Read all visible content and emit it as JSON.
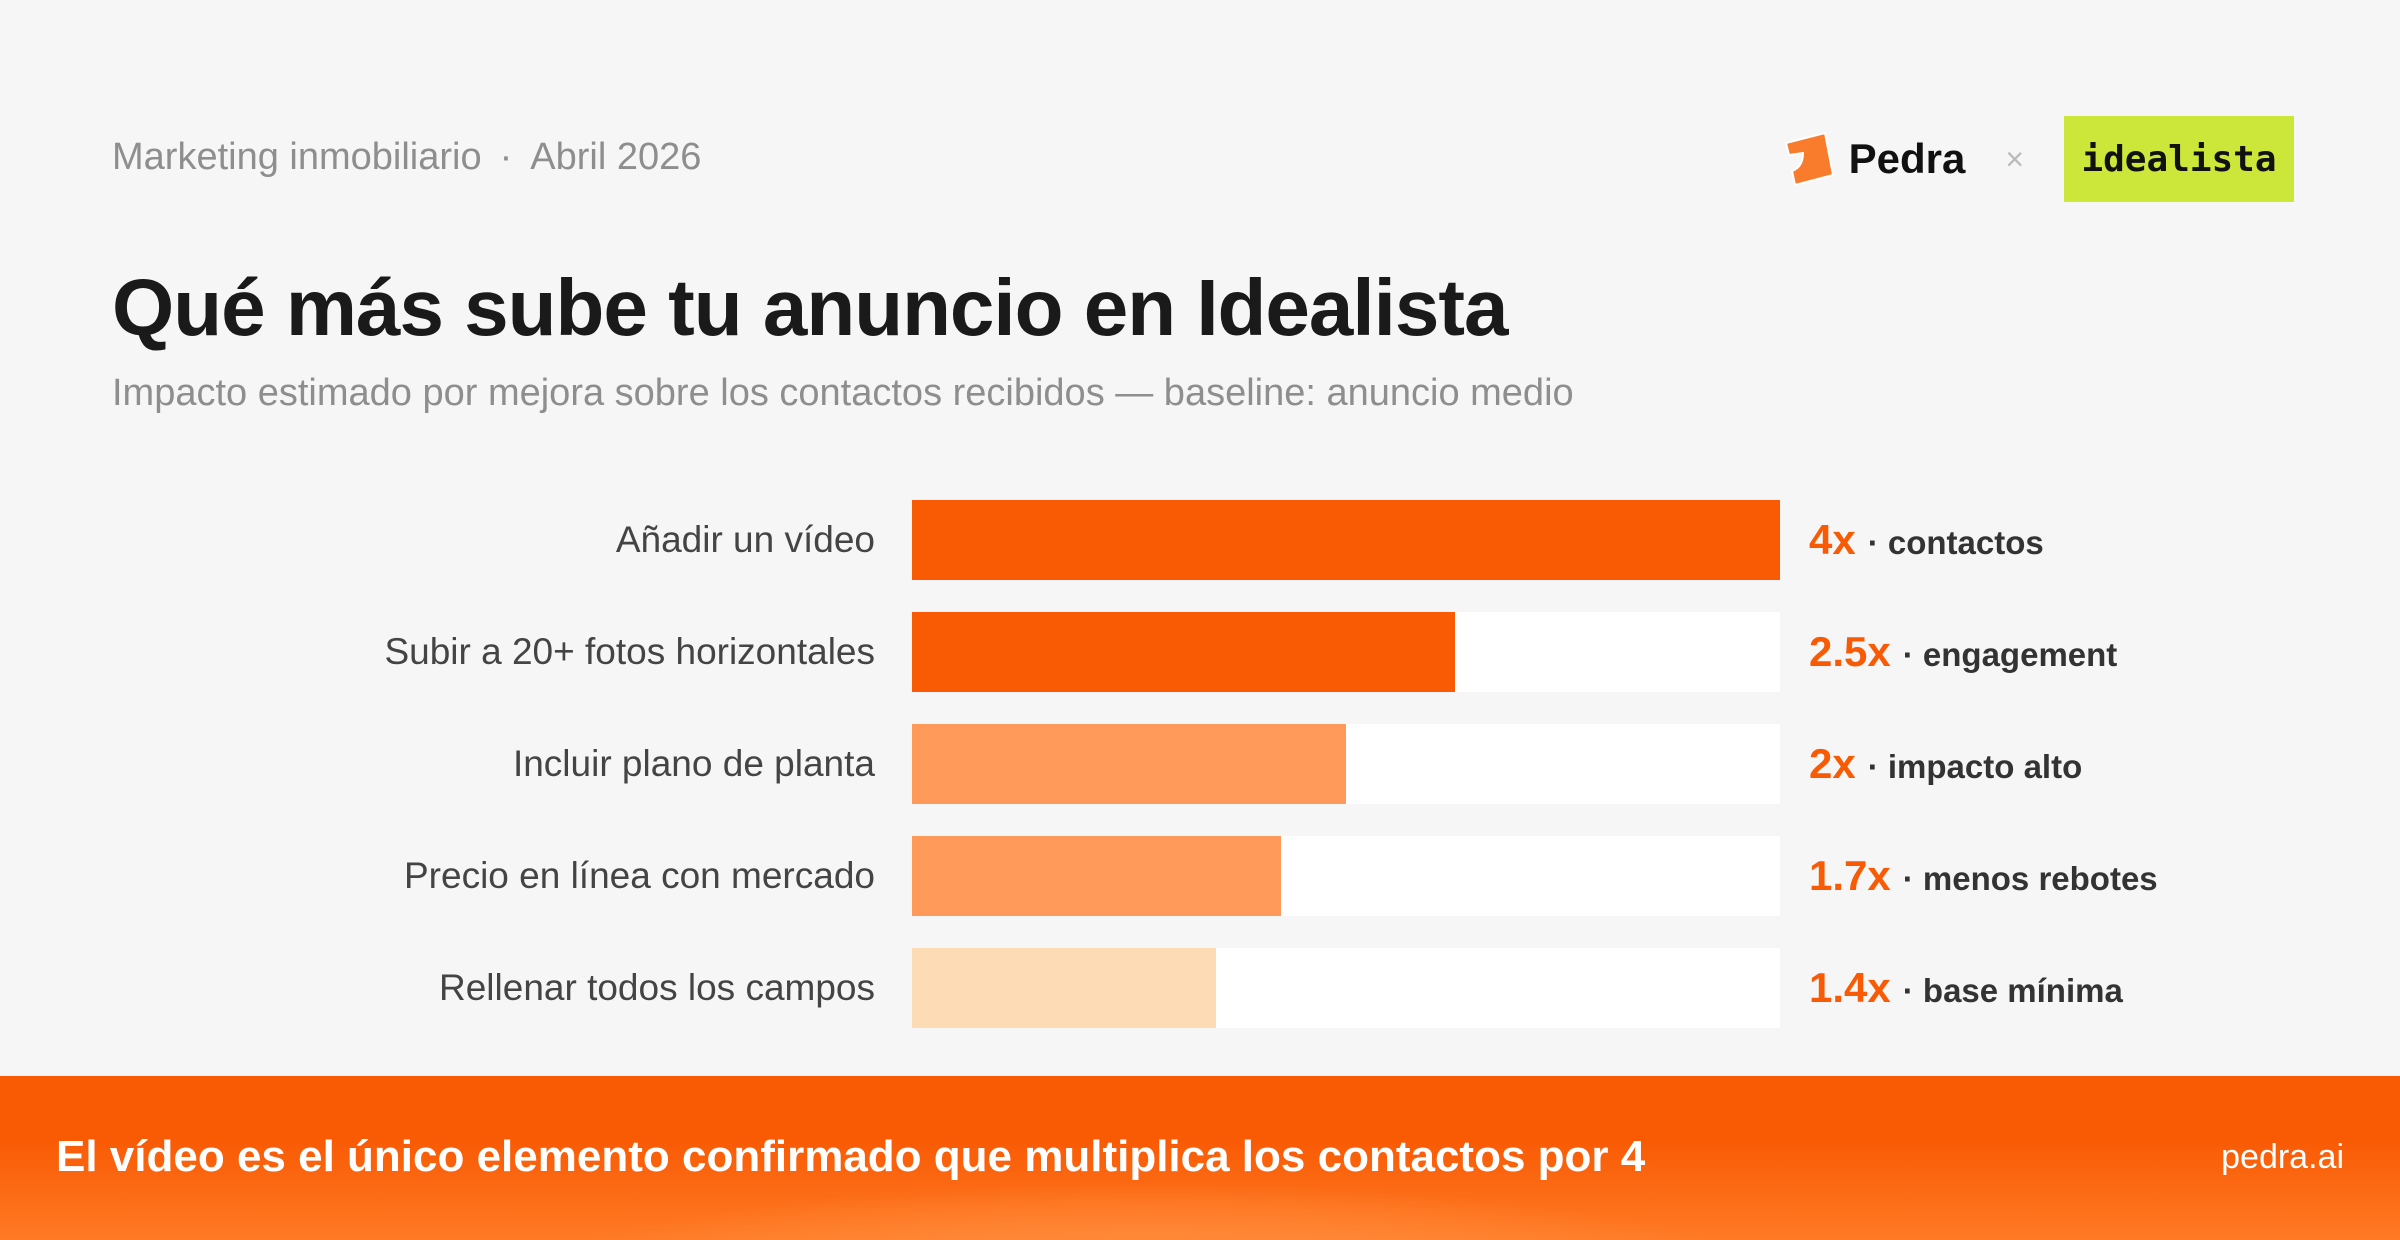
{
  "header": {
    "category": "Marketing inmobiliario",
    "separator": "·",
    "date": "Abril 2026",
    "brand": "Pedra",
    "times": "×",
    "partner": "idealista"
  },
  "title": "Qué más sube tu anuncio en Idealista",
  "subtitle": "Impacto estimado por mejora sobre los contactos recibidos — baseline: anuncio medio",
  "colors": {
    "accent": "#f95b05",
    "mid": "#ff9a5a",
    "light": "#fddbb5",
    "partner_bg": "#cde63a"
  },
  "chart_data": {
    "type": "bar",
    "orientation": "horizontal",
    "categories": [
      "Añadir un vídeo",
      "Subir a 20+ fotos horizontales",
      "Incluir plano de planta",
      "Precio en línea con mercado",
      "Rellenar todos los campos"
    ],
    "values": [
      4,
      2.5,
      2,
      1.7,
      1.4
    ],
    "xlim": [
      0,
      4
    ],
    "value_labels": [
      "4x",
      "2.5x",
      "2x",
      "1.7x",
      "1.4x"
    ],
    "annotations": [
      "· contactos",
      "· engagement",
      "· impacto alto",
      "· menos rebotes",
      "· base mínima"
    ],
    "bar_colors": [
      "#f95b05",
      "#f95b05",
      "#ff9a5a",
      "#ff9a5a",
      "#fddbb5"
    ]
  },
  "footer": {
    "message": "El vídeo es el único elemento confirmado que multiplica los contactos por 4",
    "url": "pedra.ai"
  }
}
